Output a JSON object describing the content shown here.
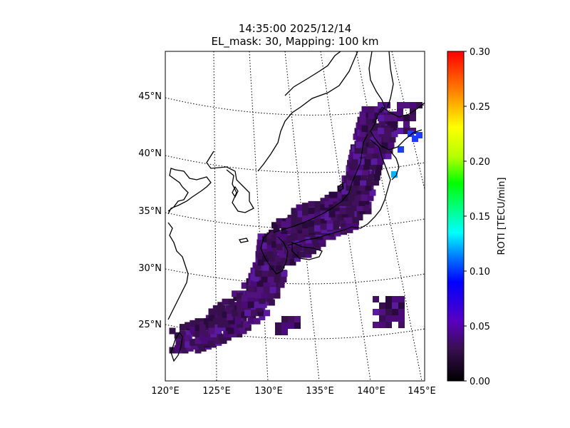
{
  "title_line1": "14:35:00 2025/12/14",
  "title_line2": "EL_mask: 30, Mapping: 100 km",
  "colorbar": {
    "label": "ROTI [TECU/min]",
    "ticks": [
      "0.00",
      "0.05",
      "0.10",
      "0.15",
      "0.20",
      "0.25",
      "0.30"
    ]
  },
  "lat_labels": [
    "45°N",
    "40°N",
    "35°N",
    "30°N",
    "25°N"
  ],
  "lon_labels": [
    "120°E",
    "125°E",
    "130°E",
    "135°E",
    "140°E",
    "145°E"
  ],
  "colors": {
    "colormap": [
      "#000000",
      "#3a0f52",
      "#5a00c0",
      "#0000ff",
      "#0080ff",
      "#00ffff",
      "#00ff00",
      "#b4ff00",
      "#ffff00",
      "#ff8000",
      "#ff0000"
    ],
    "map_background": "#ffffff",
    "coastline": "#000000",
    "roti_low": "#3a0f52",
    "roti_high": "#1e3cff"
  },
  "chart_data": {
    "type": "heatmap",
    "title": "14:35:00 2025/12/14 EL_mask: 30, Mapping: 100 km",
    "xlabel": "",
    "ylabel": "",
    "colorbar_label": "ROTI [TECU/min]",
    "value_range": [
      0.0,
      0.3
    ],
    "lon_range": [
      120,
      145
    ],
    "lat_range": [
      20,
      49
    ],
    "graticule": {
      "lon_step": 5,
      "lat_step": 5
    },
    "grid": true,
    "summary_values": {
      "typical_roti": 0.03,
      "max_roti_northeast": 0.1
    }
  }
}
